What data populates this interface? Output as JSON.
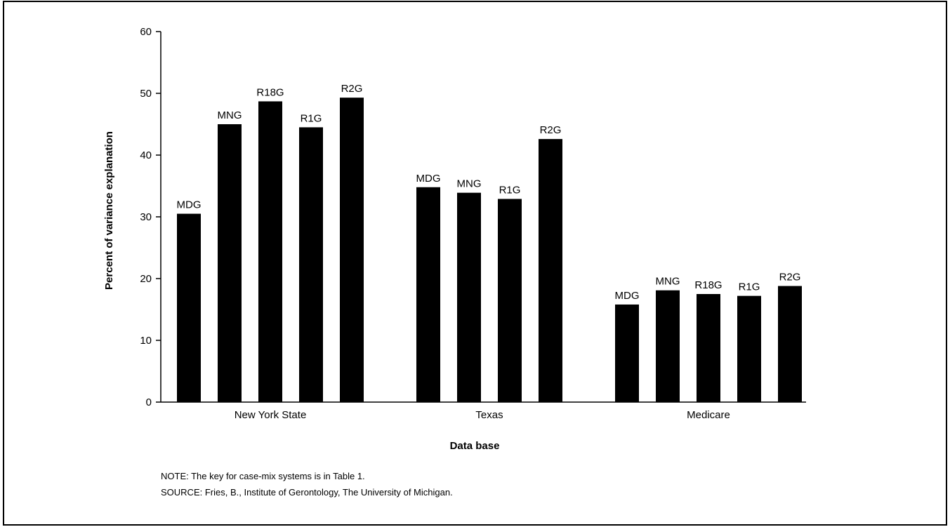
{
  "chart_data": {
    "type": "bar",
    "xlabel": "Data base",
    "ylabel": "Percent of variance explanation",
    "ylim": [
      0,
      60
    ],
    "yticks": [
      0,
      10,
      20,
      30,
      40,
      50,
      60
    ],
    "groups": [
      {
        "name": "New York State",
        "bars": [
          {
            "label": "MDG",
            "value": 30.5
          },
          {
            "label": "MNG",
            "value": 45.0
          },
          {
            "label": "R18G",
            "value": 48.7
          },
          {
            "label": "R1G",
            "value": 44.5
          },
          {
            "label": "R2G",
            "value": 49.3
          }
        ]
      },
      {
        "name": "Texas",
        "bars": [
          {
            "label": "MDG",
            "value": 34.8
          },
          {
            "label": "MNG",
            "value": 33.9
          },
          {
            "label": "R1G",
            "value": 32.9
          },
          {
            "label": "R2G",
            "value": 42.6
          }
        ]
      },
      {
        "name": "Medicare",
        "bars": [
          {
            "label": "MDG",
            "value": 15.8
          },
          {
            "label": "MNG",
            "value": 18.1
          },
          {
            "label": "R18G",
            "value": 17.5
          },
          {
            "label": "R1G",
            "value": 17.2
          },
          {
            "label": "R2G",
            "value": 18.8
          }
        ]
      }
    ],
    "bar_color": "#000000",
    "grid": false,
    "legend": "none"
  },
  "notes": {
    "note": "NOTE:  The key for case-mix systems is in Table 1.",
    "source": "SOURCE:  Fries, B., Institute of Gerontology, The University of Michigan."
  }
}
